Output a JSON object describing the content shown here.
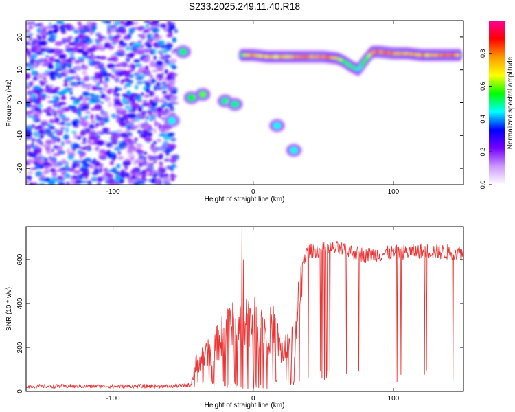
{
  "title": "S233.2025.249.11.40.R18",
  "chart_data": [
    {
      "type": "heatmap",
      "xlabel": "Height of straight line (km)",
      "ylabel": "Frequency (Hz)",
      "xlim": [
        -162,
        150
      ],
      "ylim": [
        -25,
        25
      ],
      "xticks": [
        -100,
        0,
        100
      ],
      "yticks": [
        -20,
        -10,
        0,
        10,
        20
      ],
      "colorbar": {
        "label": "Normalized spectral amplitude",
        "range": [
          0,
          1
        ],
        "ticks": [
          "0.0",
          "0.2",
          "0.4",
          "0.6",
          "0.8"
        ],
        "colors": [
          "#ffffff",
          "#cc99ff",
          "#7700ff",
          "#0000ff",
          "#00ffff",
          "#00ff00",
          "#ffff00",
          "#ff9900",
          "#ff0000",
          "#ff0099"
        ]
      },
      "noise_region": {
        "x": [
          -162,
          -55
        ],
        "level": 0.35
      },
      "features": [
        {
          "x": -58,
          "y": -5.5,
          "amplitude": 0.45
        },
        {
          "x": -50,
          "y": 15.5,
          "amplitude": 0.5
        },
        {
          "x": -44,
          "y": 1.5,
          "amplitude": 0.55
        },
        {
          "x": -36,
          "y": 2.5,
          "amplitude": 0.6
        },
        {
          "x": -20,
          "y": 0.5,
          "amplitude": 0.5
        },
        {
          "x": -13,
          "y": -0.5,
          "amplitude": 0.5
        },
        {
          "x": 17,
          "y": -7,
          "amplitude": 0.45
        },
        {
          "x": 29,
          "y": -14.5,
          "amplitude": 0.45
        }
      ],
      "ridge": {
        "x": [
          -8,
          0,
          10,
          20,
          30,
          40,
          50,
          60,
          65,
          70,
          75,
          80,
          85,
          90,
          100,
          110,
          120,
          130,
          140,
          148
        ],
        "y": [
          14.5,
          14.5,
          14,
          14,
          14,
          14,
          14,
          13.5,
          12.5,
          11,
          10,
          13,
          15.5,
          15.5,
          15,
          15,
          14.5,
          14.5,
          14.5,
          14.5
        ],
        "amplitude": [
          0.6,
          0.85,
          0.7,
          0.8,
          0.8,
          0.85,
          0.85,
          0.75,
          0.6,
          0.55,
          0.5,
          0.6,
          0.8,
          0.85,
          0.85,
          0.8,
          0.8,
          0.8,
          0.85,
          0.75
        ]
      }
    },
    {
      "type": "line",
      "xlabel": "Height of straight line (km)",
      "ylabel": "SNR (10 * v/v)",
      "xlim": [
        -162,
        150
      ],
      "ylim": [
        0,
        750
      ],
      "xticks": [
        -100,
        0,
        100
      ],
      "yticks": [
        0,
        200,
        400,
        600
      ],
      "color": "#ee3333",
      "profile": {
        "x": [
          -162,
          -60,
          -45,
          -40,
          -30,
          -20,
          -10,
          -5,
          0,
          10,
          15,
          20,
          30,
          35,
          40,
          60,
          80,
          100,
          120,
          150
        ],
        "snr": [
          20,
          20,
          25,
          150,
          200,
          300,
          350,
          380,
          350,
          300,
          320,
          200,
          250,
          600,
          640,
          650,
          620,
          630,
          640,
          630
        ]
      },
      "spikes": [
        {
          "x": -8,
          "snr": 745
        },
        {
          "x": -7,
          "snr": 600
        }
      ]
    }
  ]
}
